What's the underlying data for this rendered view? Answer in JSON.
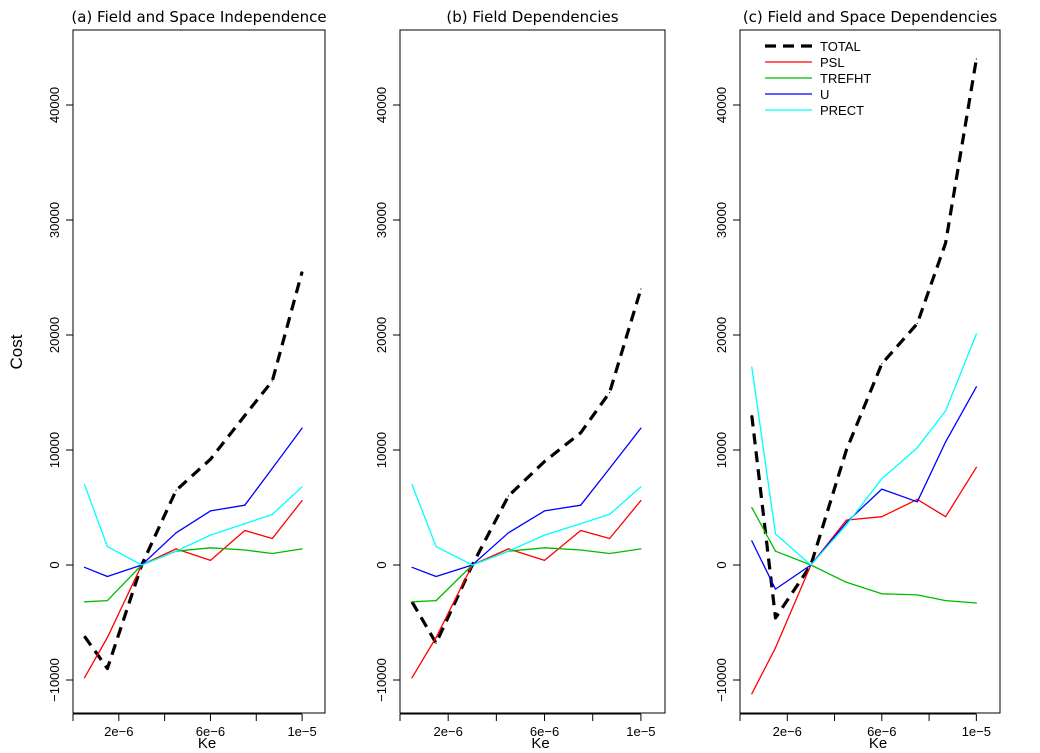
{
  "figure": {
    "ylabel": "Cost"
  },
  "chart_data": [
    {
      "type": "line",
      "title": "(a) Field and Space Independence",
      "xlabel": "Ke",
      "ylabel": "Cost",
      "x": [
        5e-07,
        1.5e-06,
        3e-06,
        4.5e-06,
        6e-06,
        7.5e-06,
        8.7e-06,
        1e-05
      ],
      "xticks": [
        2e-06,
        6e-06,
        1e-05
      ],
      "xtick_labels": [
        "2e−6",
        "6e−6",
        "1e−5"
      ],
      "xlim": [
        0,
        1.1e-05
      ],
      "ylim": [
        -11000,
        46000
      ],
      "yticks": [
        -10000,
        0,
        10000,
        20000,
        30000,
        40000
      ],
      "ytick_labels": [
        "−10000",
        "0",
        "10000",
        "20000",
        "30000",
        "40000"
      ],
      "grid": false,
      "series": [
        {
          "name": "TOTAL",
          "color": "#000000",
          "dashed": true,
          "values": [
            -6200,
            -9000,
            0,
            6500,
            9200,
            13000,
            16000,
            25500
          ]
        },
        {
          "name": "PSL",
          "color": "#ff0000",
          "values": [
            -9800,
            -6300,
            0,
            1400,
            400,
            3000,
            2300,
            5600
          ]
        },
        {
          "name": "TREFHT",
          "color": "#00bb00",
          "values": [
            -3200,
            -3100,
            0,
            1200,
            1500,
            1300,
            1000,
            1400
          ]
        },
        {
          "name": "U",
          "color": "#0000ff",
          "values": [
            -200,
            -1000,
            0,
            2800,
            4700,
            5200,
            8400,
            11900
          ]
        },
        {
          "name": "PRECT",
          "color": "#00ffff",
          "values": [
            7000,
            1600,
            0,
            1200,
            2600,
            3600,
            4400,
            6800
          ]
        }
      ]
    },
    {
      "type": "line",
      "title": "(b) Field Dependencies",
      "xlabel": "Ke",
      "ylabel": "Cost",
      "x": [
        5e-07,
        1.5e-06,
        3e-06,
        4.5e-06,
        6e-06,
        7.5e-06,
        8.7e-06,
        1e-05
      ],
      "xticks": [
        2e-06,
        6e-06,
        1e-05
      ],
      "xtick_labels": [
        "2e−6",
        "6e−6",
        "1e−5"
      ],
      "xlim": [
        0,
        1.1e-05
      ],
      "ylim": [
        -11000,
        46000
      ],
      "yticks": [
        -10000,
        0,
        10000,
        20000,
        30000,
        40000
      ],
      "ytick_labels": [
        "−10000",
        "0",
        "10000",
        "20000",
        "30000",
        "40000"
      ],
      "grid": false,
      "series": [
        {
          "name": "TOTAL",
          "color": "#000000",
          "dashed": true,
          "values": [
            -3200,
            -6800,
            0,
            6000,
            9000,
            11500,
            15000,
            24000
          ]
        },
        {
          "name": "PSL",
          "color": "#ff0000",
          "values": [
            -9800,
            -6300,
            0,
            1400,
            400,
            3000,
            2300,
            5600
          ]
        },
        {
          "name": "TREFHT",
          "color": "#00bb00",
          "values": [
            -3200,
            -3100,
            0,
            1200,
            1500,
            1300,
            1000,
            1400
          ]
        },
        {
          "name": "U",
          "color": "#0000ff",
          "values": [
            -200,
            -1000,
            0,
            2800,
            4700,
            5200,
            8400,
            11900
          ]
        },
        {
          "name": "PRECT",
          "color": "#00ffff",
          "values": [
            7000,
            1600,
            0,
            1200,
            2600,
            3600,
            4400,
            6800
          ]
        }
      ]
    },
    {
      "type": "line",
      "title": "(c) Field and Space Dependencies",
      "xlabel": "Ke",
      "ylabel": "Cost",
      "x": [
        5e-07,
        1.5e-06,
        3e-06,
        4.5e-06,
        6e-06,
        7.5e-06,
        8.7e-06,
        1e-05
      ],
      "xticks": [
        2e-06,
        6e-06,
        1e-05
      ],
      "xtick_labels": [
        "2e−6",
        "6e−6",
        "1e−5"
      ],
      "xlim": [
        0,
        1.1e-05
      ],
      "ylim": [
        -11000,
        46000
      ],
      "yticks": [
        -10000,
        0,
        10000,
        20000,
        30000,
        40000
      ],
      "ytick_labels": [
        "−10000",
        "0",
        "10000",
        "20000",
        "30000",
        "40000"
      ],
      "grid": false,
      "legend": {
        "placement": "top-left",
        "entries": [
          "TOTAL",
          "PSL",
          "TREFHT",
          "U",
          "PRECT"
        ]
      },
      "series": [
        {
          "name": "TOTAL",
          "color": "#000000",
          "dashed": true,
          "values": [
            13000,
            -4600,
            0,
            10000,
            17500,
            21000,
            28000,
            44000
          ]
        },
        {
          "name": "PSL",
          "color": "#ff0000",
          "values": [
            -11200,
            -7200,
            0,
            3900,
            4200,
            5700,
            4200,
            8500
          ]
        },
        {
          "name": "TREFHT",
          "color": "#00bb00",
          "values": [
            5000,
            1200,
            0,
            -1500,
            -2500,
            -2600,
            -3100,
            -3300
          ]
        },
        {
          "name": "U",
          "color": "#0000ff",
          "values": [
            2100,
            -2100,
            0,
            3700,
            6600,
            5500,
            10700,
            15500
          ]
        },
        {
          "name": "PRECT",
          "color": "#00ffff",
          "values": [
            17200,
            2700,
            0,
            3500,
            7500,
            10200,
            13400,
            20100
          ]
        }
      ]
    }
  ]
}
